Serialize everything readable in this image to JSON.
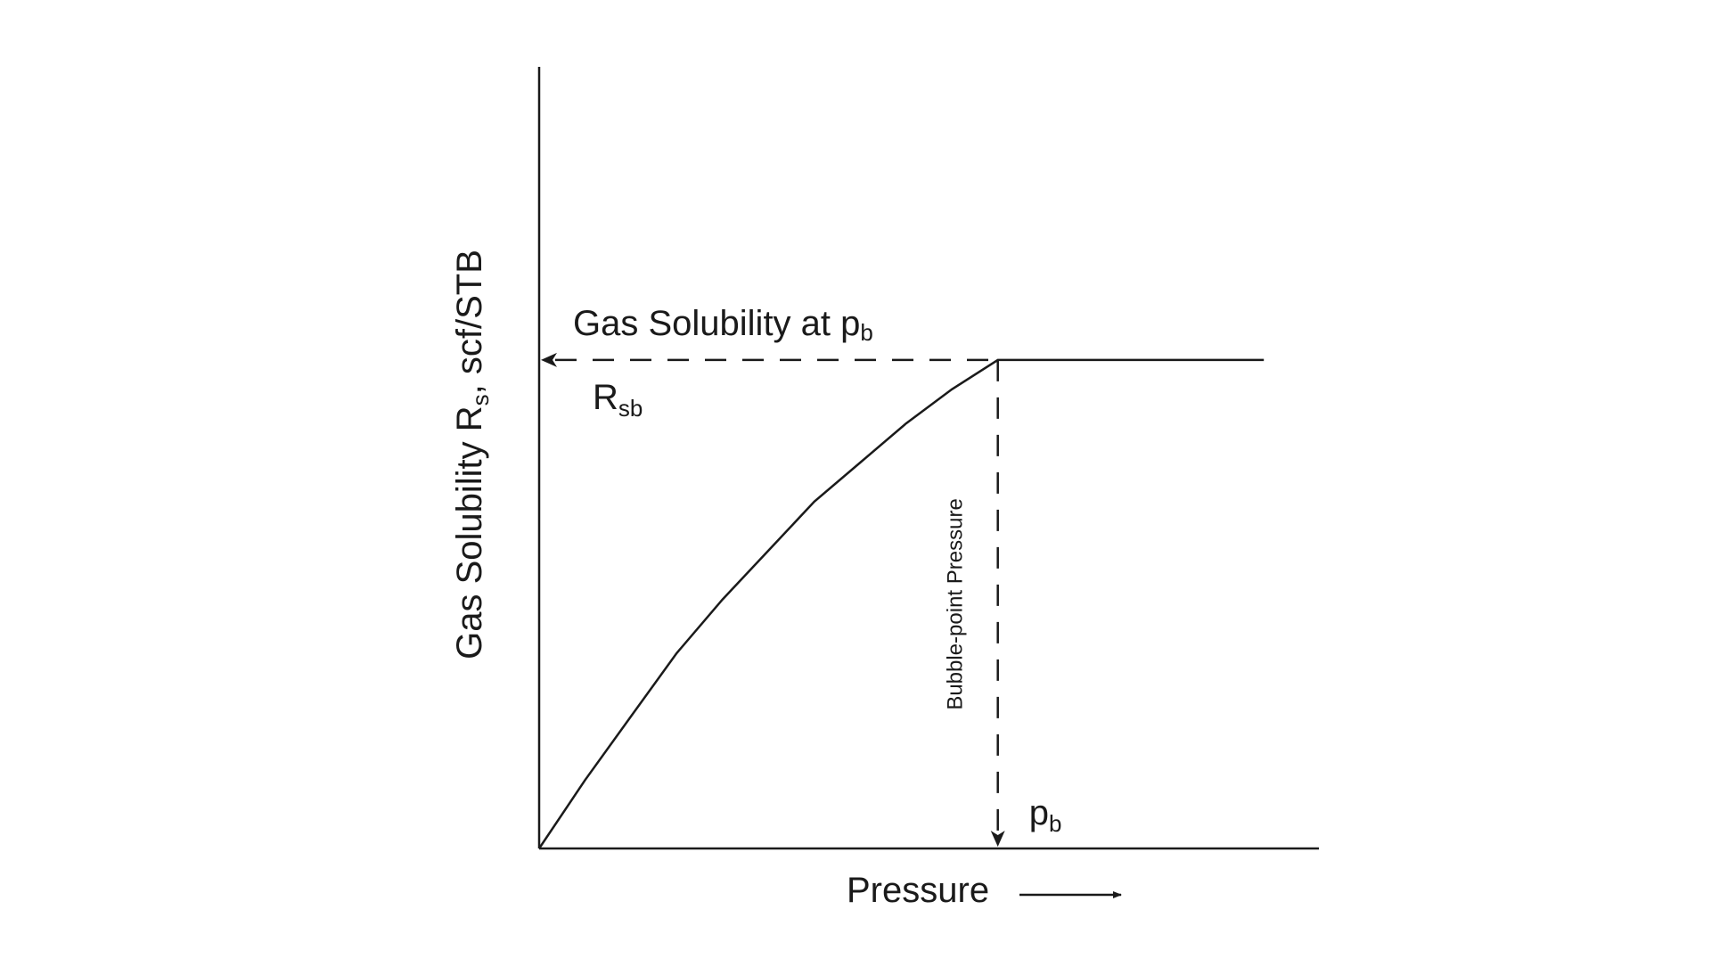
{
  "chart_data": {
    "type": "line",
    "xlabel": "Pressure",
    "ylabel": {
      "main": "Gas Solubility R",
      "sub": "s",
      "tail": ", scf/STB"
    },
    "series": [
      {
        "x": [
          0,
          0.1,
          0.2,
          0.3,
          0.4,
          0.5,
          0.6,
          0.7,
          0.8,
          0.9,
          1.0,
          1.2,
          1.4,
          1.58
        ],
        "y": [
          0,
          0.14,
          0.27,
          0.4,
          0.51,
          0.61,
          0.71,
          0.79,
          0.87,
          0.94,
          1.0,
          1.0,
          1.0,
          1.0
        ]
      }
    ],
    "xlim": [
      0,
      1.7
    ],
    "ylim": [
      0,
      1.6
    ],
    "bubble_point": {
      "x": 1.0,
      "y": 1.0
    },
    "annotations": {
      "rsb_callout": {
        "main": "Gas Solubility at p",
        "sub": "b"
      },
      "rsb_symbol": {
        "main": "R",
        "sub": "sb"
      },
      "pb_symbol": {
        "main": "p",
        "sub": "b"
      },
      "bubble_point_label": "Bubble-point Pressure"
    }
  }
}
